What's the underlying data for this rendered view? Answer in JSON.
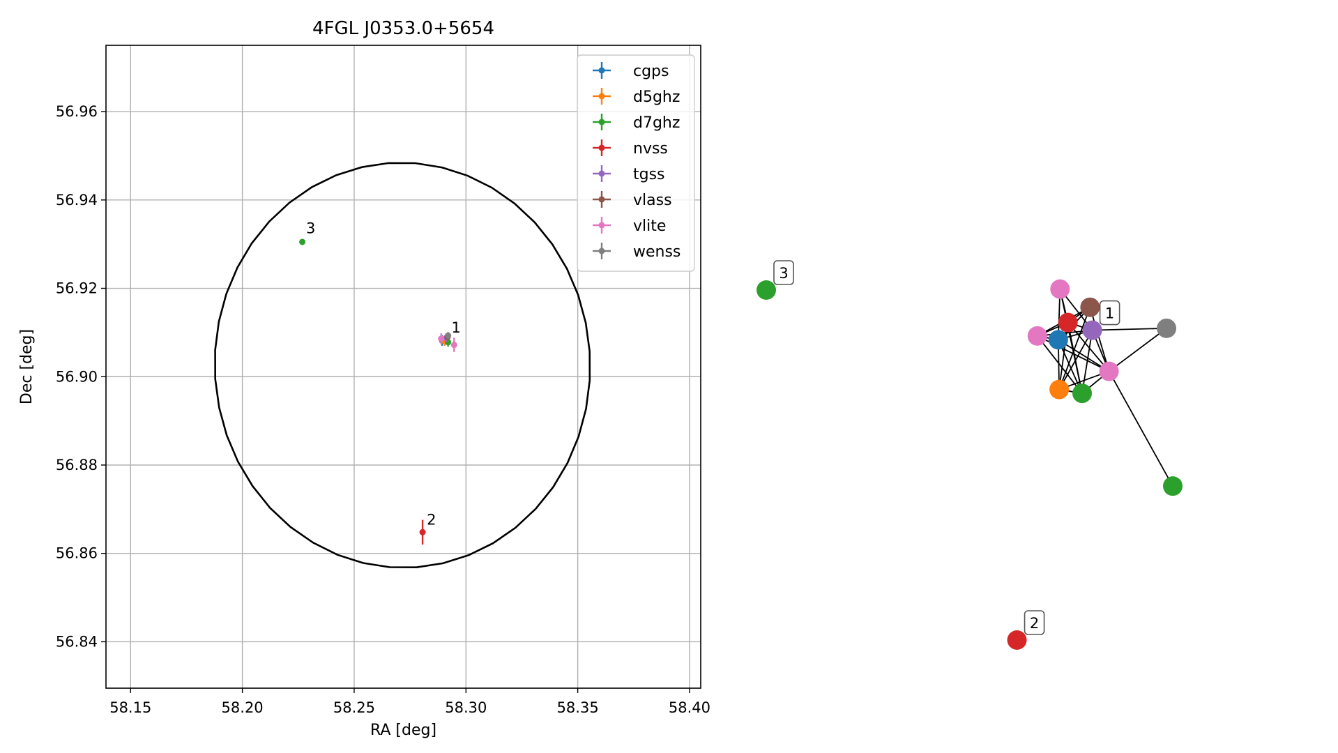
{
  "chart_data": [
    {
      "type": "scatter",
      "title": "4FGL J0353.0+5654",
      "xlabel": "RA [deg]",
      "ylabel": "Dec [deg]",
      "xlim": [
        58.139,
        58.405
      ],
      "ylim": [
        56.8295,
        56.975
      ],
      "xticks": [
        58.15,
        58.2,
        58.25,
        58.3,
        58.35,
        58.4
      ],
      "yticks": [
        56.84,
        56.86,
        56.88,
        56.9,
        56.92,
        56.94,
        56.96
      ],
      "xtick_labels": [
        "58.15",
        "58.20",
        "58.25",
        "58.30",
        "58.35",
        "58.40"
      ],
      "ytick_labels": [
        "56.84",
        "56.86",
        "56.88",
        "56.90",
        "56.92",
        "56.94",
        "56.96"
      ],
      "grid": true,
      "legend_position": "top-right",
      "ellipse": {
        "center": [
          58.2716,
          56.9026
        ],
        "semi_axes_sky": [
          0.046,
          0.0457
        ],
        "angle_deg": -45,
        "color": "#000000"
      },
      "series": [
        {
          "name": "cgps",
          "color": "#1f77b4",
          "points": [
            {
              "x": 58.2893,
              "y": 56.9082,
              "yerr": 0.0012
            }
          ]
        },
        {
          "name": "d5ghz",
          "color": "#ff7f0e",
          "points": [
            {
              "x": 58.2905,
              "y": 56.908,
              "yerr": 0.001
            }
          ]
        },
        {
          "name": "d7ghz",
          "color": "#2ca02c",
          "points": [
            {
              "x": 58.2268,
              "y": 56.9305,
              "yerr": 0.0006
            },
            {
              "x": 58.292,
              "y": 56.9078,
              "yerr": 0.001
            }
          ]
        },
        {
          "name": "nvss",
          "color": "#d62728",
          "points": [
            {
              "x": 58.2806,
              "y": 56.8648,
              "yerr": 0.0028
            }
          ]
        },
        {
          "name": "tgss",
          "color": "#9467bd",
          "points": [
            {
              "x": 58.2912,
              "y": 56.9088,
              "yerr": 0.001
            }
          ]
        },
        {
          "name": "vlass",
          "color": "#8c564b",
          "points": [
            {
              "x": 58.2918,
              "y": 56.909,
              "yerr": 0.0005
            }
          ]
        },
        {
          "name": "vlite",
          "color": "#e377c2",
          "points": [
            {
              "x": 58.2889,
              "y": 56.9086,
              "yerr": 0.0012
            },
            {
              "x": 58.2947,
              "y": 56.9072,
              "yerr": 0.0016
            }
          ]
        },
        {
          "name": "wenss",
          "color": "#7f7f7f",
          "points": [
            {
              "x": 58.292,
              "y": 56.9093,
              "yerr": 0.0008
            }
          ]
        }
      ],
      "annotations": [
        {
          "text": "1",
          "x": 58.2935,
          "y": 56.91
        },
        {
          "text": "2",
          "x": 58.2825,
          "y": 56.8665
        },
        {
          "text": "3",
          "x": 58.2285,
          "y": 56.9325
        }
      ]
    },
    {
      "type": "network",
      "nodes": [
        {
          "id": "vlite_a",
          "color": "#e377c2",
          "x": 0.392,
          "y": 0.835
        },
        {
          "id": "vlass",
          "color": "#8c564b",
          "x": 0.498,
          "y": 0.74
        },
        {
          "id": "nvss_c",
          "color": "#d62728",
          "x": 0.42,
          "y": 0.66
        },
        {
          "id": "tgss",
          "color": "#9467bd",
          "x": 0.506,
          "y": 0.62
        },
        {
          "id": "vlite_b",
          "color": "#e377c2",
          "x": 0.312,
          "y": 0.59
        },
        {
          "id": "cgps",
          "color": "#1f77b4",
          "x": 0.386,
          "y": 0.57
        },
        {
          "id": "wenss",
          "color": "#7f7f7f",
          "x": 0.768,
          "y": 0.63
        },
        {
          "id": "vlite_c",
          "color": "#e377c2",
          "x": 0.565,
          "y": 0.405
        },
        {
          "id": "d5ghz",
          "color": "#ff7f0e",
          "x": 0.389,
          "y": 0.31
        },
        {
          "id": "d7ghz_a",
          "color": "#2ca02c",
          "x": 0.47,
          "y": 0.29
        },
        {
          "id": "d7ghz_b",
          "color": "#2ca02c",
          "x": 0.79,
          "y": -0.195
        },
        {
          "id": "d7ghz_3",
          "color": "#2ca02c",
          "x": -0.645,
          "y": 0.83
        },
        {
          "id": "nvss_2",
          "color": "#d62728",
          "x": 0.24,
          "y": -1.0
        }
      ],
      "edges": [
        [
          "vlite_a",
          "nvss_c"
        ],
        [
          "vlite_a",
          "cgps"
        ],
        [
          "vlite_a",
          "tgss"
        ],
        [
          "vlite_a",
          "d7ghz_a"
        ],
        [
          "vlass",
          "nvss_c"
        ],
        [
          "vlass",
          "vlite_b"
        ],
        [
          "vlass",
          "vlite_c"
        ],
        [
          "vlass",
          "d5ghz"
        ],
        [
          "vlass",
          "cgps"
        ],
        [
          "nvss_c",
          "vlite_b"
        ],
        [
          "nvss_c",
          "tgss"
        ],
        [
          "nvss_c",
          "d5ghz"
        ],
        [
          "nvss_c",
          "d7ghz_a"
        ],
        [
          "nvss_c",
          "vlite_c"
        ],
        [
          "tgss",
          "vlite_b"
        ],
        [
          "tgss",
          "cgps"
        ],
        [
          "tgss",
          "wenss"
        ],
        [
          "tgss",
          "vlite_c"
        ],
        [
          "tgss",
          "d7ghz_a"
        ],
        [
          "tgss",
          "d5ghz"
        ],
        [
          "cgps",
          "vlite_b"
        ],
        [
          "cgps",
          "d5ghz"
        ],
        [
          "cgps",
          "d7ghz_a"
        ],
        [
          "cgps",
          "vlite_c"
        ],
        [
          "vlite_b",
          "vlite_c"
        ],
        [
          "vlite_b",
          "d7ghz_a"
        ],
        [
          "vlite_c",
          "d7ghz_a"
        ],
        [
          "vlite_c",
          "d5ghz"
        ],
        [
          "vlite_c",
          "wenss"
        ],
        [
          "vlite_c",
          "d7ghz_b"
        ],
        [
          "d5ghz",
          "d7ghz_a"
        ]
      ],
      "labels": [
        {
          "text": "1",
          "node": "tgss"
        },
        {
          "text": "2",
          "node": "nvss_2"
        },
        {
          "text": "3",
          "node": "d7ghz_3"
        }
      ]
    }
  ]
}
